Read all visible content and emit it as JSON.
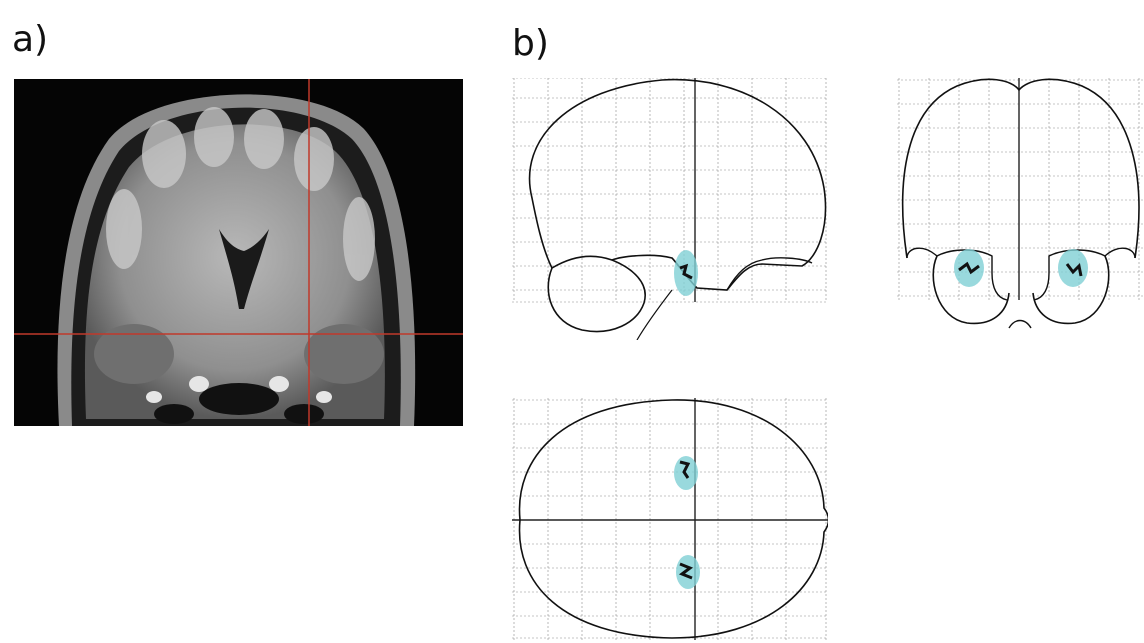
{
  "panels": {
    "a": {
      "label": "a)"
    },
    "b": {
      "label": "b)"
    }
  },
  "colors": {
    "crosshair": "#c0392b",
    "activation": "#7fcfd4",
    "grid": "#8a8a8a",
    "outline": "#111111"
  }
}
